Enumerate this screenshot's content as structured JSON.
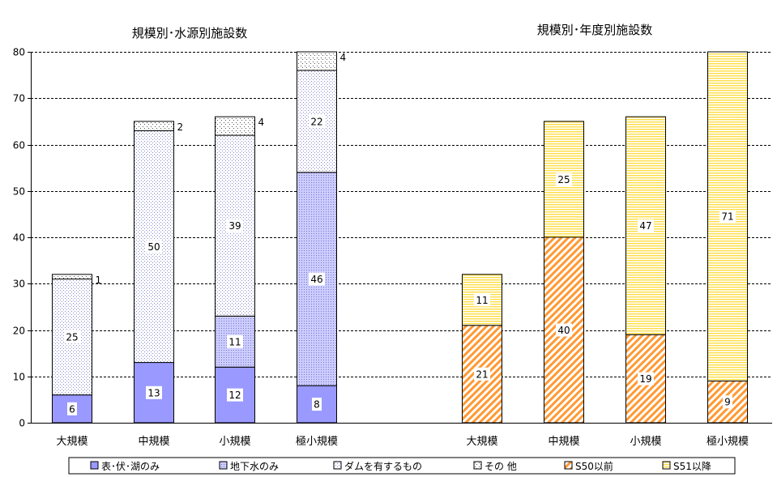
{
  "chart_data": [
    {
      "type": "bar",
      "stacked": true,
      "title": "規模別･水源別施設数",
      "categories": [
        "大規模",
        "中規模",
        "小規模",
        "極小規模"
      ],
      "ylim": [
        0,
        80
      ],
      "yticks": [
        0,
        10,
        20,
        30,
        40,
        50,
        60,
        70,
        80
      ],
      "grid": "horizontal-dashed",
      "series": [
        {
          "name": "表･伏･湖のみ",
          "values": [
            6,
            13,
            12,
            8
          ],
          "color": "#9999ff",
          "pattern": "solid"
        },
        {
          "name": "地下水のみ",
          "values": [
            0,
            0,
            11,
            46
          ],
          "color": "#ccccff",
          "pattern": "dots-fine"
        },
        {
          "name": "ダムを有するもの",
          "values": [
            25,
            50,
            39,
            22
          ],
          "color": "#ffffff",
          "pattern": "dots-sparse-blue"
        },
        {
          "name": "その 他",
          "values": [
            1,
            2,
            4,
            4
          ],
          "color": "#ffffff",
          "pattern": "dots-sparse-black"
        }
      ]
    },
    {
      "type": "bar",
      "stacked": true,
      "title": "規模別･年度別施設数",
      "categories": [
        "大規模",
        "中規模",
        "小規模",
        "極小規模"
      ],
      "ylim": [
        0,
        80
      ],
      "series": [
        {
          "name": "S50以前",
          "values": [
            21,
            40,
            19,
            9
          ],
          "color": "#ff9933",
          "pattern": "diagonal-stripes"
        },
        {
          "name": "S51以降",
          "values": [
            11,
            25,
            47,
            71
          ],
          "color": "#ffff99",
          "pattern": "horizontal-stripes"
        }
      ]
    }
  ],
  "legend": {
    "position": "bottom",
    "items": [
      {
        "label": "表･伏･湖のみ",
        "pattern": "solid-blue"
      },
      {
        "label": "地下水のみ",
        "pattern": "dots-fine"
      },
      {
        "label": "ダムを有するもの",
        "pattern": "dots-sparse-blue"
      },
      {
        "label": "その 他",
        "pattern": "dots-sparse-black"
      },
      {
        "label": "S50以前",
        "pattern": "diagonal-stripes"
      },
      {
        "label": "S51以降",
        "pattern": "horizontal-stripes"
      }
    ]
  }
}
